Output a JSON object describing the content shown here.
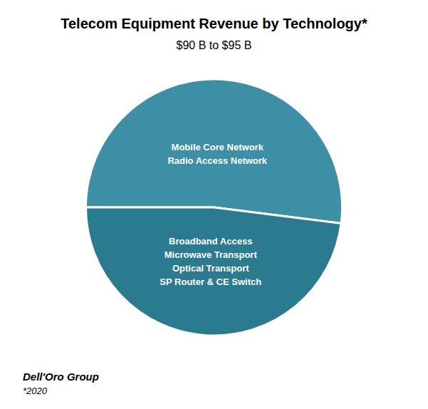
{
  "chart_data": {
    "type": "pie",
    "title": "Telecom Equipment Revenue by Technology*",
    "subtitle": "$90 B to $95 B",
    "categories": [
      "Mobile Core Network\nRadio Access Network",
      "Broadband Access\nMicrowave Transport\nOptical Transport\nSP Router & CE Switch"
    ],
    "values": [
      52,
      48
    ],
    "colors": [
      "#3d8fa6",
      "#2a7a90"
    ],
    "annotations": [
      "Dell'Oro Group",
      "*2020"
    ]
  }
}
